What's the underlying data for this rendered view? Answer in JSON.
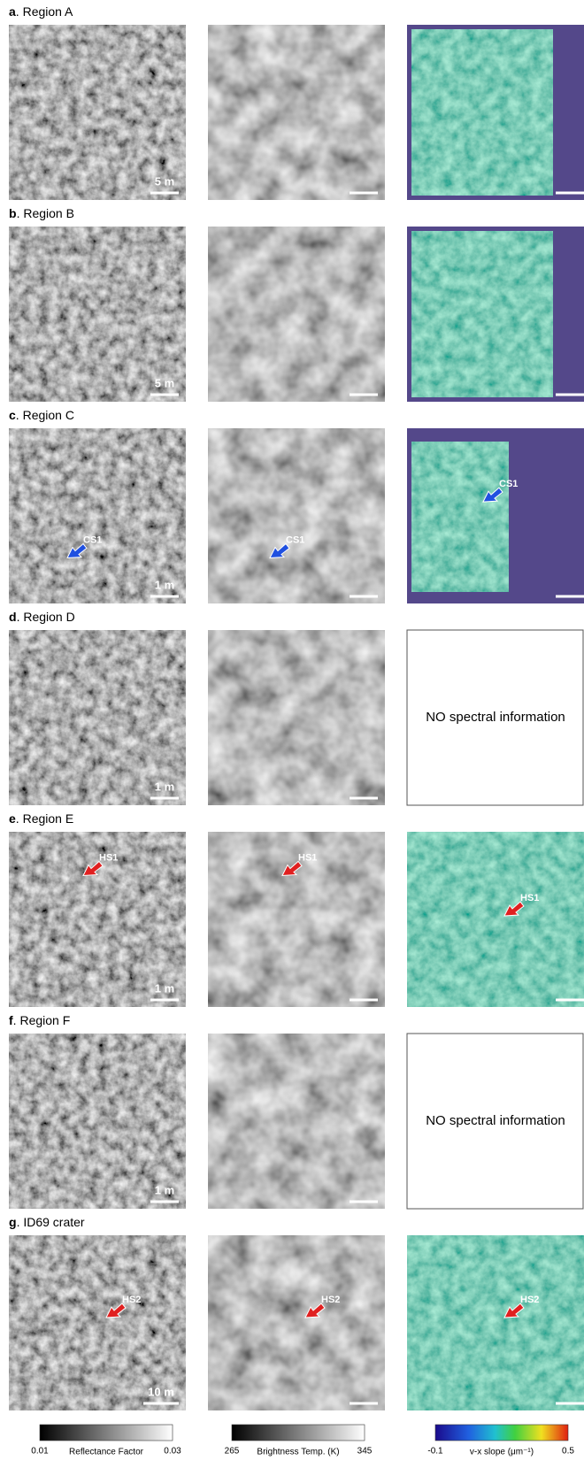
{
  "rows": [
    {
      "letter": "a",
      "title": "Region A",
      "scale": "5 m"
    },
    {
      "letter": "b",
      "title": "Region B",
      "scale": "5 m"
    },
    {
      "letter": "c",
      "title": "Region C",
      "scale": "1 m",
      "callouts": [
        "CS1",
        "CS1",
        "CS1"
      ],
      "callout_color": "#2050e0"
    },
    {
      "letter": "d",
      "title": "Region D",
      "scale": "1 m",
      "note": "NO spectral information"
    },
    {
      "letter": "e",
      "title": "Region E",
      "scale": "1 m",
      "callouts": [
        "HS1",
        "HS1",
        "HS1"
      ],
      "callout_color": "#e02020"
    },
    {
      "letter": "f",
      "title": "Region F",
      "scale": "1 m",
      "note": "NO spectral information"
    },
    {
      "letter": "g",
      "title": "ID69 crater",
      "scale": "10 m",
      "callouts": [
        "HS2",
        "HS2",
        "HS2"
      ],
      "callout_color": "#e02020"
    }
  ],
  "colorbars": [
    {
      "min": 0.01,
      "max": 0.03,
      "label": "Reflectance Factor"
    },
    {
      "min": 265,
      "max": 345,
      "label": "Brightness Temp. (K)"
    },
    {
      "min": -0.1,
      "max": 0.5,
      "label": "v-x slope (μm⁻¹)"
    }
  ]
}
